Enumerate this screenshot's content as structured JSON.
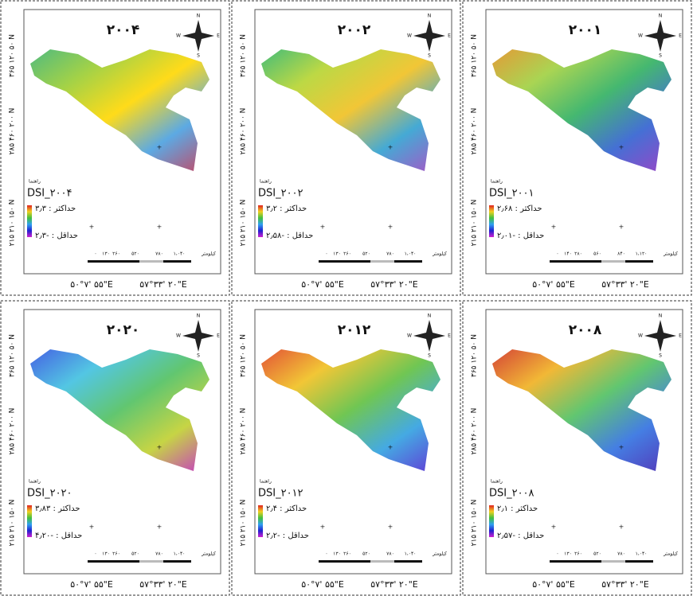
{
  "panels": [
    {
      "title": "۲۰۰۴",
      "legend_title": "DSI_۲۰۰۴",
      "max_label": "حداکثر : ۳٫۳",
      "min_label": "حداقل : -۲٫۳",
      "scale_ticks": [
        "۰",
        "۱۳۰",
        "۲۶۰",
        "۵۲۰",
        "۷۸۰",
        "۱،۰۴۰"
      ]
    },
    {
      "title": "۲۰۰۲",
      "legend_title": "DSI_۲۰۰۲",
      "max_label": "حداکثر : ۳٫۲",
      "min_label": "حداقل : -۲٫۵۸",
      "scale_ticks": [
        "۰",
        "۱۳۰",
        "۲۶۰",
        "۵۲۰",
        "۷۸۰",
        "۱،۰۴۰"
      ]
    },
    {
      "title": "۲۰۰۱",
      "legend_title": "DSI_۲۰۰۱",
      "max_label": "حداکثر : ۲٫۶۸",
      "min_label": "حداقل : -۲٫۰۱",
      "scale_ticks": [
        "۰",
        "۱۴۰",
        "۲۸۰",
        "۵۶۰",
        "۸۴۰",
        "۱،۱۲۰"
      ]
    },
    {
      "title": "۲۰۲۰",
      "legend_title": "DSI_۲۰۲۰",
      "max_label": "حداکثر : ۳٫۸۳",
      "min_label": "حداقل : -۴٫۲۰",
      "scale_ticks": [
        "۰",
        "۱۳۰",
        "۲۶۰",
        "۵۲۰",
        "۷۸۰",
        "۱،۰۴۰"
      ]
    },
    {
      "title": "۲۰۱۲",
      "legend_title": "DSI_۲۰۱۲",
      "max_label": "حداکثر : ۲٫۴",
      "min_label": "حداقل : -۲٫۲",
      "scale_ticks": [
        "۰",
        "۱۳۰",
        "۲۶۰",
        "۵۲۰",
        "۷۸۰",
        "۱،۰۴۰"
      ]
    },
    {
      "title": "۲۰۰۸",
      "legend_title": "DSI_۲۰۰۸",
      "max_label": "حداکثر : ۲٫۱",
      "min_label": "حداقل : -۲٫۵۷",
      "scale_ticks": [
        "۰",
        "۱۳۰",
        "۲۶۰",
        "۵۲۰",
        "۷۸۰",
        "۱،۰۴۰"
      ]
    }
  ],
  "legend_header": "راهنما",
  "scale_unit": "کیلومتر",
  "lat_labels": [
    "۳۶۵ ۱۲۰ ۵۰ N",
    "۲۸۵ ۴۶۰ ۲۰۰ N",
    "۲۱۵ ۲۱۰ ۱۵۰ N"
  ],
  "lon_labels": [
    "۵۰°۷' ۵۵\"E",
    "۵۷°۳۳' ۲۰\"E"
  ],
  "compass": {
    "n": "N",
    "s": "S",
    "e": "E",
    "w": "W"
  }
}
